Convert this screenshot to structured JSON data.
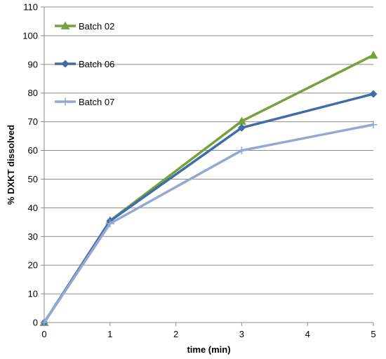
{
  "chart_data": {
    "type": "line",
    "title": "",
    "xlabel": "time (min)",
    "ylabel": "% DXKT dissolved",
    "xlim": [
      0,
      5
    ],
    "ylim": [
      0,
      110
    ],
    "x_ticks": [
      0,
      1,
      2,
      3,
      4,
      5
    ],
    "y_ticks": [
      0,
      10,
      20,
      30,
      40,
      50,
      60,
      70,
      80,
      90,
      100,
      110
    ],
    "grid": "horizontal",
    "legend_position": "top-left",
    "series": [
      {
        "name": "Batch 02",
        "color": "#77a03e",
        "marker": "triangle",
        "x": [
          0,
          1,
          3,
          5
        ],
        "y": [
          0,
          35.5,
          70.2,
          93.2
        ]
      },
      {
        "name": "Batch 06",
        "color": "#3f6ea7",
        "marker": "diamond",
        "x": [
          0,
          1,
          3,
          5
        ],
        "y": [
          0,
          35.4,
          67.9,
          79.7
        ]
      },
      {
        "name": "Batch 07",
        "color": "#93a9d1",
        "marker": "plus",
        "x": [
          0,
          1,
          3,
          5
        ],
        "y": [
          0,
          34.5,
          60,
          69
        ]
      }
    ]
  }
}
